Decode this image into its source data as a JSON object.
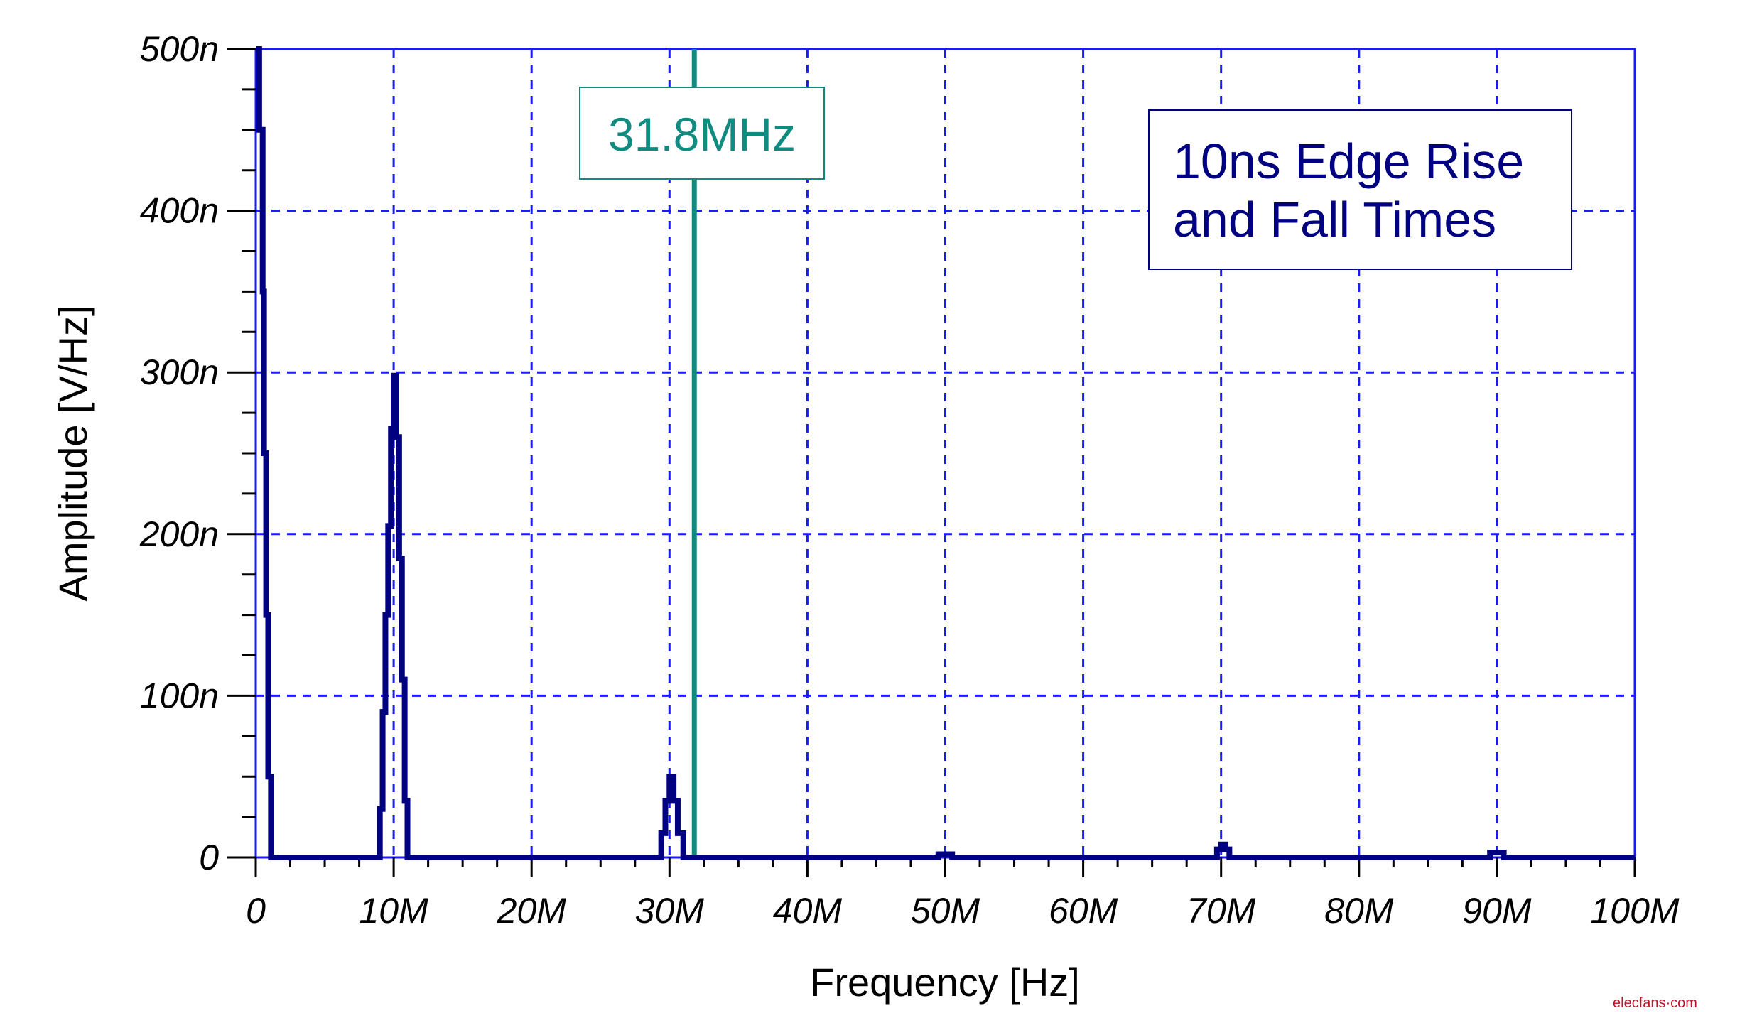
{
  "chart_data": {
    "type": "line",
    "xlabel": "Frequency [Hz]",
    "ylabel": "Amplitude [V/Hz]",
    "xlim": [
      0,
      100000000
    ],
    "ylim": [
      0,
      5e-07
    ],
    "x_ticks": [
      0,
      10000000,
      20000000,
      30000000,
      40000000,
      50000000,
      60000000,
      70000000,
      80000000,
      90000000,
      100000000
    ],
    "x_tick_labels": [
      "0",
      "10M",
      "20M",
      "30M",
      "40M",
      "50M",
      "60M",
      "70M",
      "80M",
      "90M",
      "100M"
    ],
    "y_ticks": [
      0,
      1e-07,
      2e-07,
      3e-07,
      4e-07,
      5e-07
    ],
    "y_tick_labels": [
      "0",
      "100n",
      "200n",
      "300n",
      "400n",
      "500n"
    ],
    "grid": true,
    "grid_style": "dashed",
    "series": [
      {
        "color": "#000080",
        "step": true,
        "x_MHz": [
          0,
          0.25,
          0.5,
          0.6,
          0.75,
          0.9,
          1.1,
          8.9,
          9.0,
          9.2,
          9.4,
          9.6,
          9.8,
          10.0,
          10.2,
          10.4,
          10.6,
          10.8,
          11.0,
          29.0,
          29.4,
          29.7,
          30.0,
          30.3,
          30.6,
          31.0,
          49.5,
          50.5,
          69.4,
          69.7,
          70.0,
          70.3,
          70.6,
          89.5,
          90.5,
          100
        ],
        "y_nV_per_Hz": [
          500,
          450,
          350,
          250,
          150,
          50,
          0,
          0,
          30,
          90,
          150,
          205,
          265,
          298,
          260,
          185,
          110,
          35,
          0,
          0,
          15,
          35,
          50,
          35,
          15,
          0,
          2,
          0,
          0,
          5,
          8,
          5,
          0,
          3,
          0,
          0
        ]
      }
    ],
    "marker": {
      "x": 31800000,
      "label": "31.8MHz",
      "color": "#118a80"
    },
    "annotation": {
      "lines": [
        "10ns Edge Rise",
        "and Fall Times"
      ],
      "color": "#000080"
    }
  },
  "colors": {
    "grid": "#1a1aff",
    "frame": "#1a1aff",
    "trace": "#000080"
  },
  "watermark": "elecfans·com"
}
